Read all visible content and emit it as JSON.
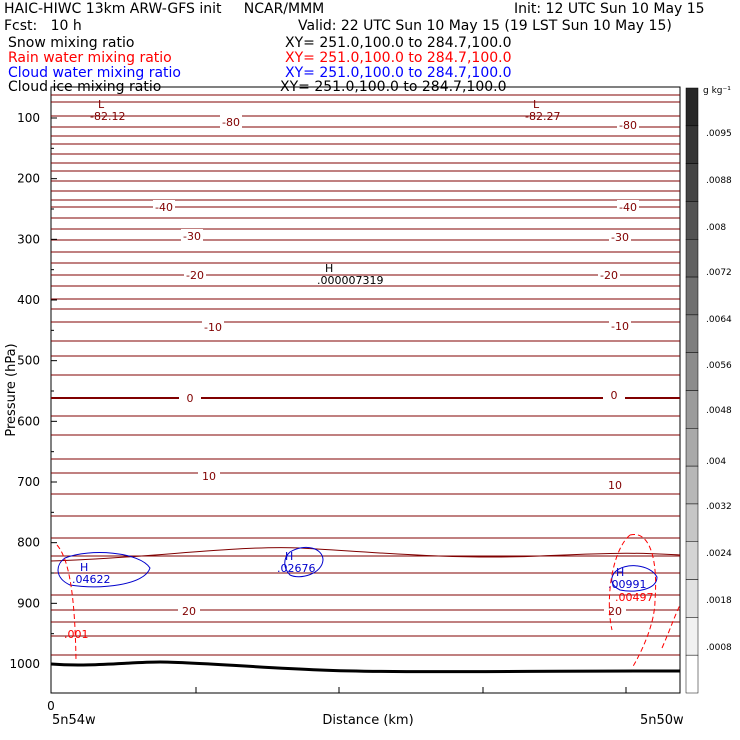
{
  "header": {
    "title_left": "HAIC-HIWC 13km ARW-GFS init     NCAR/MMM",
    "init": "Init: 12 UTC Sun 10 May 15",
    "fcst": "Fcst:   10 h",
    "valid": "Valid: 22 UTC Sun 10 May 15 (19 LST Sun 10 May 15)"
  },
  "legend": [
    {
      "name": "Snow mixing ratio",
      "xy": "XY= 251.0,100.0 to 284.7,100.0",
      "color": "#000000"
    },
    {
      "name": "Rain water mixing ratio",
      "xy": "XY= 251.0,100.0 to 284.7,100.0",
      "color": "#ff0000"
    },
    {
      "name": "Cloud water mixing ratio",
      "xy": "XY= 251.0,100.0 to 284.7,100.0",
      "color": "#0000ff"
    },
    {
      "name": "Cloud ice mixing ratio",
      "xy": "XY= 251.0,100.0 to 284.7,100.0",
      "color": "#000000"
    }
  ],
  "chart_data": {
    "type": "cross-section",
    "ylabel": "Pressure (hPa)",
    "xlabel": "Distance (km)",
    "y_ticks": [
      100,
      200,
      300,
      400,
      500,
      600,
      700,
      800,
      900,
      1000
    ],
    "x_tick_label": "0",
    "x_end_labels": [
      "5n54w",
      "5n50w"
    ],
    "colorbar": {
      "unit": "g kg⁻¹",
      "labels": [
        ".0095",
        ".0088",
        ".008",
        ".0072",
        ".0064",
        ".0056",
        ".0048",
        ".004",
        ".0032",
        ".0024",
        ".0018",
        ".0008"
      ]
    },
    "temperature_labels": [
      "-80",
      "-40",
      "-30",
      "-20",
      "-10",
      "0",
      "10",
      "20"
    ],
    "annotations": [
      {
        "text": "L",
        "value": "-82.12"
      },
      {
        "text": "L",
        "value": "-82.27"
      },
      {
        "text": "H",
        "value": ".000007319"
      },
      {
        "text": "H",
        "value": ".04622"
      },
      {
        "text": "H",
        "value": ".02676"
      },
      {
        "text": "H",
        "value": ".00991"
      },
      {
        "text": "",
        "value": ".00497"
      },
      {
        "text": "",
        "value": ".001"
      }
    ],
    "colors": {
      "isotherm": "#800000",
      "cloud_water": "#0000cc",
      "rain": "#ff0000",
      "terrain": "#000000"
    }
  }
}
